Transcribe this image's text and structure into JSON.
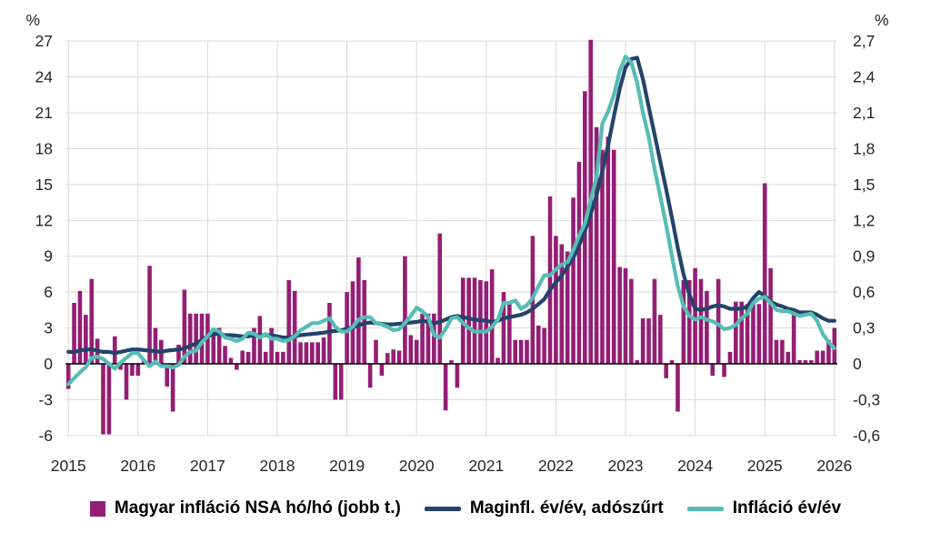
{
  "axes": {
    "left_unit_label": "%",
    "right_unit_label": "%",
    "left_ticks": [
      "27",
      "24",
      "21",
      "18",
      "15",
      "12",
      "9",
      "6",
      "3",
      "0",
      "-3",
      "-6"
    ],
    "left_tick_values": [
      27,
      24,
      21,
      18,
      15,
      12,
      9,
      6,
      3,
      0,
      -3,
      -6
    ],
    "right_ticks": [
      "2,7",
      "2,4",
      "2,1",
      "1,8",
      "1,5",
      "1,2",
      "0,9",
      "0,6",
      "0,3",
      "0",
      "-0,3",
      "-0,6"
    ],
    "year_labels": [
      "2015",
      "2016",
      "2017",
      "2018",
      "2019",
      "2020",
      "2021",
      "2022",
      "2023",
      "2024",
      "2025",
      "2026"
    ]
  },
  "legend": [
    {
      "label": "Magyar infláció NSA hó/hó (jobb t.)",
      "swatch": "square",
      "color": "#941E74"
    },
    {
      "label": "Maginfl. év/év, adószűrt",
      "swatch": "line",
      "color": "#24436B"
    },
    {
      "label": "Infláció év/év",
      "swatch": "line",
      "color": "#55BDB5"
    }
  ],
  "colors": {
    "bar": "#941E74",
    "core_line": "#24436B",
    "headline_line": "#55BDB5",
    "grid": "#D9D9D9",
    "zero_axis": "#000000",
    "tick_text": "#262626",
    "background": "#FFFFFF"
  },
  "chart_data": {
    "type": "combo-bar-line",
    "x_start": "2015-01",
    "x_end": "2026-01",
    "x_frequency": "monthly",
    "left_axis_range": [
      -6,
      27
    ],
    "right_axis_range": [
      -0.6,
      2.7
    ],
    "grid": "horizontal-and-yearly-vertical",
    "legend_position": "bottom",
    "series": [
      {
        "name": "Magyar infláció NSA hó/hó (jobb t.)",
        "type": "bar",
        "axis": "right",
        "values": [
          -0.21,
          0.51,
          0.61,
          0.41,
          0.71,
          0.21,
          -0.59,
          -0.59,
          0.23,
          -0.05,
          -0.3,
          -0.1,
          -0.1,
          0.03,
          0.82,
          0.3,
          0.2,
          -0.19,
          -0.4,
          0.16,
          0.62,
          0.42,
          0.42,
          0.42,
          0.42,
          0.3,
          0.3,
          0.15,
          0.05,
          -0.05,
          0.11,
          0.1,
          0.3,
          0.4,
          0.1,
          0.3,
          0.1,
          0.1,
          0.7,
          0.61,
          0.18,
          0.18,
          0.18,
          0.18,
          0.22,
          0.51,
          -0.3,
          -0.3,
          0.6,
          0.69,
          0.89,
          0.7,
          -0.2,
          0.2,
          -0.1,
          0.09,
          0.12,
          0.11,
          0.9,
          0.24,
          0.2,
          0.42,
          0.42,
          0.42,
          1.09,
          -0.39,
          0.03,
          -0.2,
          0.72,
          0.72,
          0.72,
          0.7,
          0.69,
          0.79,
          0.05,
          0.6,
          0.52,
          0.2,
          0.2,
          0.2,
          1.07,
          0.32,
          0.3,
          1.4,
          1.07,
          1.0,
          0.94,
          1.39,
          1.69,
          2.28,
          2.71,
          1.98,
          1.79,
          1.9,
          1.79,
          0.81,
          0.8,
          0.71,
          0.03,
          0.38,
          0.38,
          0.71,
          0.41,
          -0.12,
          0.03,
          -0.4,
          0.7,
          0.7,
          0.8,
          0.71,
          0.61,
          -0.1,
          0.71,
          -0.11,
          0.1,
          0.52,
          0.52,
          0.5,
          0.5,
          0.5,
          1.51,
          0.8,
          0.2,
          0.2,
          0.1,
          0.46,
          0.03,
          0.03,
          0.03,
          0.11,
          0.11,
          0.2,
          0.3
        ]
      },
      {
        "name": "Maginfl. év/év, adószűrt",
        "type": "line",
        "axis": "left",
        "values": [
          1.0,
          1.0,
          1.1,
          1.2,
          1.2,
          1.1,
          1.0,
          1.0,
          0.9,
          1.0,
          1.1,
          1.2,
          1.2,
          1.15,
          1.1,
          1.05,
          1.0,
          1.1,
          1.15,
          1.2,
          1.3,
          1.5,
          1.7,
          2.0,
          2.3,
          2.5,
          2.5,
          2.4,
          2.4,
          2.35,
          2.3,
          2.3,
          2.4,
          2.4,
          2.4,
          2.4,
          2.3,
          2.2,
          2.2,
          2.3,
          2.4,
          2.45,
          2.5,
          2.55,
          2.6,
          2.7,
          2.75,
          2.8,
          2.95,
          3.05,
          3.2,
          3.4,
          3.45,
          3.4,
          3.35,
          3.3,
          3.3,
          3.35,
          3.4,
          3.45,
          3.5,
          3.6,
          3.5,
          3.4,
          3.5,
          3.7,
          3.9,
          4.0,
          3.9,
          3.8,
          3.7,
          3.65,
          3.6,
          3.5,
          3.6,
          3.8,
          3.9,
          4.0,
          4.1,
          4.3,
          4.6,
          5.0,
          5.4,
          6.2,
          6.8,
          7.4,
          8.1,
          8.9,
          9.9,
          11.1,
          12.5,
          14.1,
          16.1,
          18.3,
          20.7,
          23.0,
          24.8,
          25.5,
          25.6,
          23.8,
          21.5,
          19.2,
          16.9,
          14.6,
          12.2,
          9.7,
          7.5,
          5.8,
          4.6,
          4.5,
          4.6,
          4.8,
          4.9,
          4.8,
          4.6,
          4.6,
          4.6,
          4.8,
          5.5,
          6.0,
          5.7,
          5.2,
          4.95,
          4.8,
          4.6,
          4.5,
          4.3,
          4.3,
          4.3,
          4.1,
          3.8,
          3.6,
          3.6
        ]
      },
      {
        "name": "Infláció év/év",
        "type": "line",
        "axis": "left",
        "values": [
          -1.7,
          -1.2,
          -0.7,
          -0.3,
          0.5,
          0.6,
          0.4,
          0.0,
          -0.4,
          0.1,
          0.5,
          0.9,
          0.9,
          0.3,
          -0.2,
          0.2,
          -0.2,
          -0.2,
          -0.3,
          -0.1,
          0.6,
          1.0,
          1.1,
          1.8,
          2.3,
          2.9,
          2.7,
          2.2,
          2.1,
          1.9,
          2.1,
          2.6,
          2.5,
          2.2,
          2.5,
          2.1,
          2.1,
          1.9,
          2.0,
          2.3,
          2.8,
          3.1,
          3.4,
          3.4,
          3.6,
          3.8,
          3.1,
          2.7,
          2.7,
          3.1,
          3.7,
          3.9,
          3.9,
          3.4,
          3.3,
          3.1,
          2.8,
          2.9,
          3.4,
          4.0,
          4.7,
          4.4,
          3.9,
          2.4,
          2.2,
          2.9,
          3.8,
          3.9,
          3.4,
          3.0,
          2.7,
          2.7,
          2.7,
          3.1,
          3.7,
          5.1,
          5.1,
          5.3,
          4.6,
          4.9,
          5.5,
          6.5,
          7.4,
          7.4,
          7.9,
          8.3,
          8.5,
          9.5,
          10.7,
          11.7,
          13.7,
          15.6,
          20.1,
          21.1,
          22.5,
          24.5,
          25.7,
          25.2,
          23.5,
          21.0,
          19.0,
          16.3,
          14.0,
          11.6,
          9.0,
          6.5,
          4.8,
          4.0,
          3.7,
          3.9,
          3.7,
          3.55,
          3.3,
          2.9,
          3.0,
          3.25,
          3.8,
          4.2,
          5.1,
          5.45,
          5.6,
          5.1,
          4.5,
          4.4,
          4.4,
          4.2,
          4.0,
          4.1,
          4.2,
          3.6,
          2.5,
          1.8,
          1.3
        ]
      }
    ]
  }
}
